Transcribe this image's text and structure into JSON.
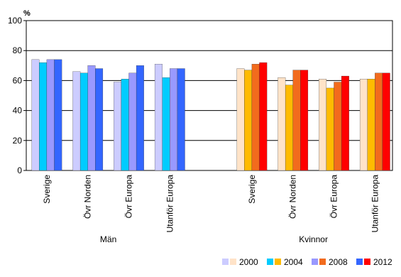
{
  "chart_data": {
    "type": "grouped-bar",
    "ylabel": "%",
    "ylim": [
      0,
      100
    ],
    "yticks": [
      0,
      20,
      40,
      60,
      80,
      100
    ],
    "grid": true,
    "groups": [
      {
        "label": "Män",
        "categories": [
          "Sverige",
          "Övr Norden",
          "Övr Europa",
          "Utanför Europa"
        ]
      },
      {
        "label": "Kvinnor",
        "categories": [
          "Sverige",
          "Övr Norden",
          "Övr Europa",
          "Utanför Europa"
        ]
      }
    ],
    "series": [
      {
        "name": "2000",
        "colors": [
          "#ccccff",
          "#ffe3c8"
        ],
        "values": [
          [
            74,
            66,
            59,
            71
          ],
          [
            68,
            62,
            61,
            61
          ]
        ]
      },
      {
        "name": "2004",
        "colors": [
          "#00ccff",
          "#ffbb00"
        ],
        "values": [
          [
            72,
            65,
            61,
            62
          ],
          [
            67,
            57,
            55,
            61
          ]
        ]
      },
      {
        "name": "2008",
        "colors": [
          "#9999ff",
          "#f26b1d"
        ],
        "values": [
          [
            74,
            70,
            65,
            68
          ],
          [
            71,
            67,
            59,
            65
          ]
        ]
      },
      {
        "name": "2012",
        "colors": [
          "#3366ff",
          "#ff0000"
        ],
        "values": [
          [
            74,
            68,
            70,
            68
          ],
          [
            72,
            67,
            63,
            65
          ]
        ]
      }
    ]
  }
}
